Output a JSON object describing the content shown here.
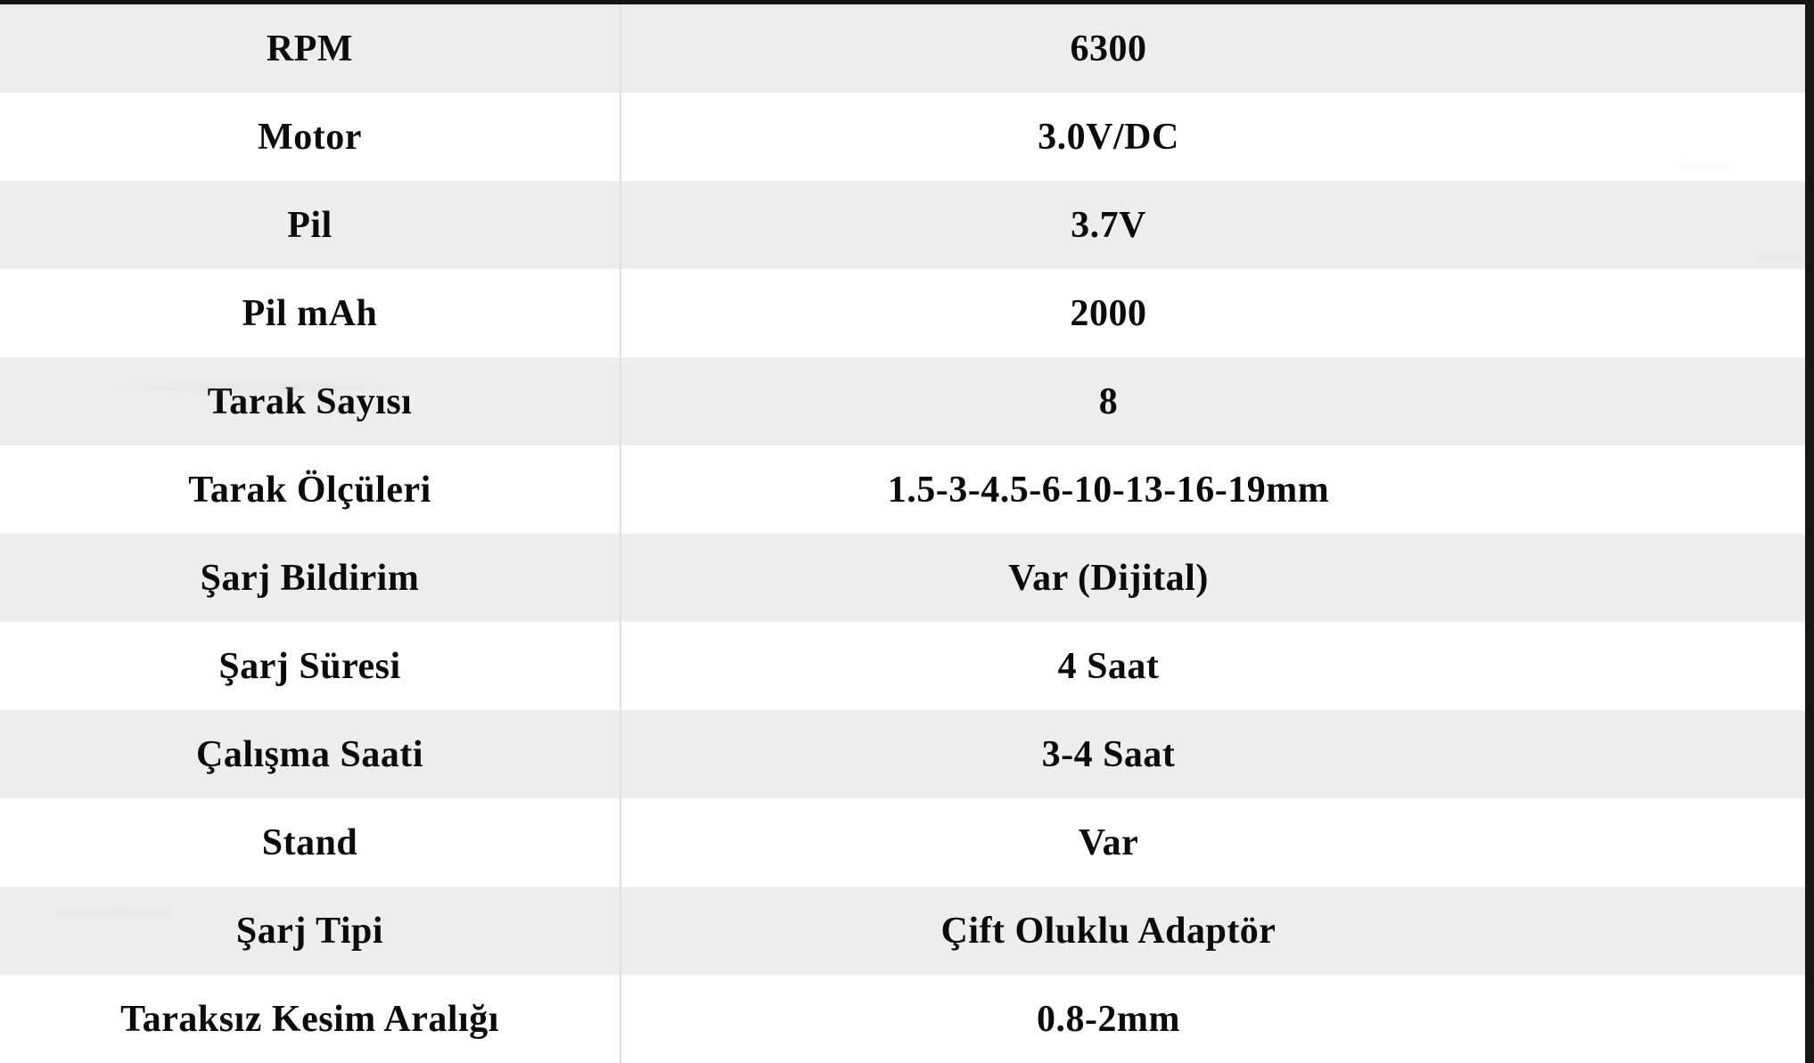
{
  "table": {
    "rows": [
      {
        "label": "RPM",
        "value": "6300"
      },
      {
        "label": "Motor",
        "value": "3.0V/DC"
      },
      {
        "label": "Pil",
        "value": "3.7V"
      },
      {
        "label": "Pil mAh",
        "value": "2000"
      },
      {
        "label": "Tarak Sayısı",
        "value": "8"
      },
      {
        "label": "Tarak Ölçüleri",
        "value": "1.5-3-4.5-6-10-13-16-19mm"
      },
      {
        "label": "Şarj Bildirim",
        "value": "Var (Dijital)"
      },
      {
        "label": "Şarj Süresi",
        "value": "4 Saat"
      },
      {
        "label": "Çalışma Saati",
        "value": "3-4 Saat"
      },
      {
        "label": "Stand",
        "value": "Var"
      },
      {
        "label": "Şarj Tipi",
        "value": "Çift Oluklu Adaptör"
      },
      {
        "label": "Taraksız Kesim Aralığı",
        "value": "0.8-2mm"
      }
    ]
  },
  "colors": {
    "row_shaded": "#ededed",
    "row_plain": "#ffffff",
    "outer_border": "#161616",
    "column_divider": "#e0e0e0",
    "text": "#0b0b0b"
  }
}
